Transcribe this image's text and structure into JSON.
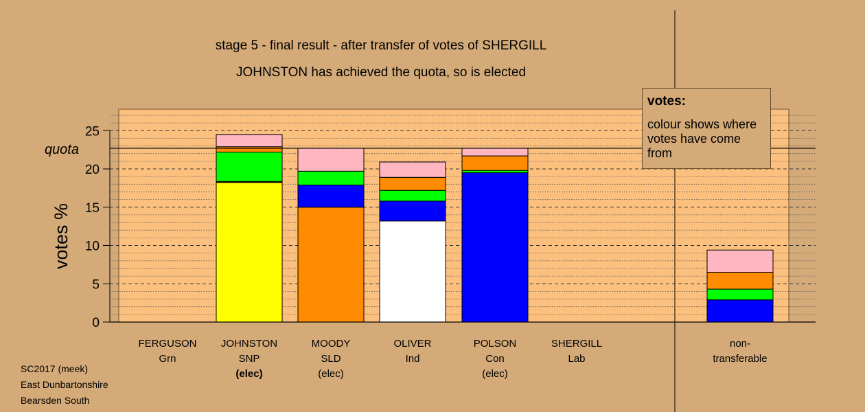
{
  "header": {
    "title": "stage 5 - final result - after transfer of votes of SHERGILL",
    "subtitle": "JOHNSTON has achieved the quota, so is elected"
  },
  "legend": {
    "title": "votes:",
    "text": "colour shows where votes have come from"
  },
  "footer": {
    "line1": "SC2017 (meek)",
    "line2": "East Dunbartonshire",
    "line3": "Bearsden South"
  },
  "colors": {
    "background": "#d4aa78",
    "plot_area": "#fcc07e",
    "SNP": "#ffff00",
    "SLD": "#ff8c00",
    "Ind": "#ffffff",
    "Con": "#0000ff",
    "Grn": "#00ff00",
    "Lab": "#ffb6c1"
  },
  "chart_data": {
    "type": "bar",
    "stacked": true,
    "ylabel": "votes %",
    "ylim": [
      0,
      27.8
    ],
    "yticks": [
      0,
      5,
      10,
      15,
      20,
      25
    ],
    "quota": 22.7,
    "quota_label": "quota",
    "candidates": [
      {
        "name": "FERGUSON",
        "party": "Grn",
        "status": "",
        "segments": []
      },
      {
        "name": "JOHNSTON",
        "party": "SNP",
        "status": "(elec)",
        "segments": [
          {
            "source": "SNP",
            "value": 18.3
          },
          {
            "source": "Grn",
            "value": 3.9
          },
          {
            "source": "SLD",
            "value": 0.7
          },
          {
            "source": "Lab",
            "value": 1.6
          }
        ]
      },
      {
        "name": "MOODY",
        "party": "SLD",
        "status": "(elec)",
        "segments": [
          {
            "source": "SLD",
            "value": 15.0
          },
          {
            "source": "Con",
            "value": 2.9
          },
          {
            "source": "Grn",
            "value": 1.8
          },
          {
            "source": "Lab",
            "value": 3.0
          }
        ]
      },
      {
        "name": "OLIVER",
        "party": "Ind",
        "status": "",
        "segments": [
          {
            "source": "Ind",
            "value": 13.2
          },
          {
            "source": "Con",
            "value": 2.6
          },
          {
            "source": "Grn",
            "value": 1.4
          },
          {
            "source": "SLD",
            "value": 1.7
          },
          {
            "source": "Lab",
            "value": 2.0
          }
        ]
      },
      {
        "name": "POLSON",
        "party": "Con",
        "status": "(elec)",
        "segments": [
          {
            "source": "Con",
            "value": 19.5
          },
          {
            "source": "Grn",
            "value": 0.3
          },
          {
            "source": "SLD",
            "value": 1.9
          },
          {
            "source": "Lab",
            "value": 1.0
          }
        ]
      },
      {
        "name": "SHERGILL",
        "party": "Lab",
        "status": "",
        "segments": []
      }
    ],
    "non_transferable": {
      "label_line1": "non-",
      "label_line2": "transferable",
      "segments": [
        {
          "source": "Con",
          "value": 2.9
        },
        {
          "source": "Grn",
          "value": 1.4
        },
        {
          "source": "SLD",
          "value": 2.2
        },
        {
          "source": "Lab",
          "value": 2.9
        }
      ]
    }
  }
}
